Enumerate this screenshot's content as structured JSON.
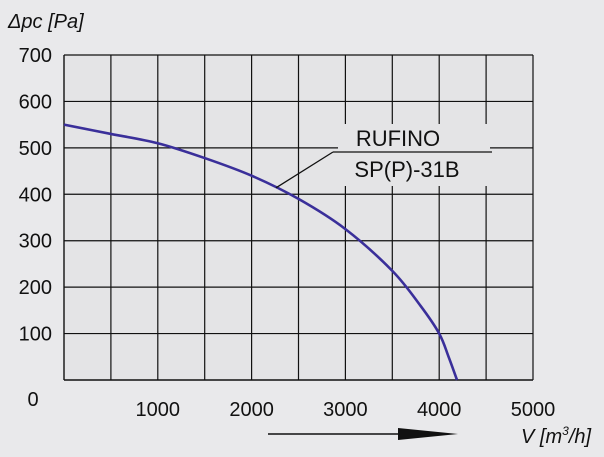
{
  "chart_data": {
    "type": "line",
    "ylabel": "Δpc [Pa]",
    "xlabel_base": "V [m",
    "xlabel_sup": "3",
    "xlabel_tail": "/h]",
    "xlim": [
      0,
      5000
    ],
    "ylim": [
      0,
      700
    ],
    "grid": true,
    "x_ticks": [
      1000,
      2000,
      3000,
      4000,
      5000
    ],
    "y_ticks": [
      100,
      200,
      300,
      400,
      500,
      600,
      700
    ],
    "origin_label": "0",
    "x_minor_gridlines": [
      500,
      1500,
      2500,
      3500,
      4500
    ],
    "series": [
      {
        "name": "RUFINO SP(P)-31B",
        "color": "#3a2f9a",
        "x": [
          0,
          500,
          1000,
          1500,
          2000,
          2500,
          3000,
          3500,
          3800,
          4000,
          4100,
          4190
        ],
        "y": [
          550,
          530,
          510,
          478,
          440,
          390,
          325,
          235,
          160,
          100,
          50,
          0
        ]
      }
    ],
    "annotation": {
      "lines": [
        "RUFINO",
        "SP(P)-31B"
      ],
      "points_to_x": 2260
    }
  }
}
